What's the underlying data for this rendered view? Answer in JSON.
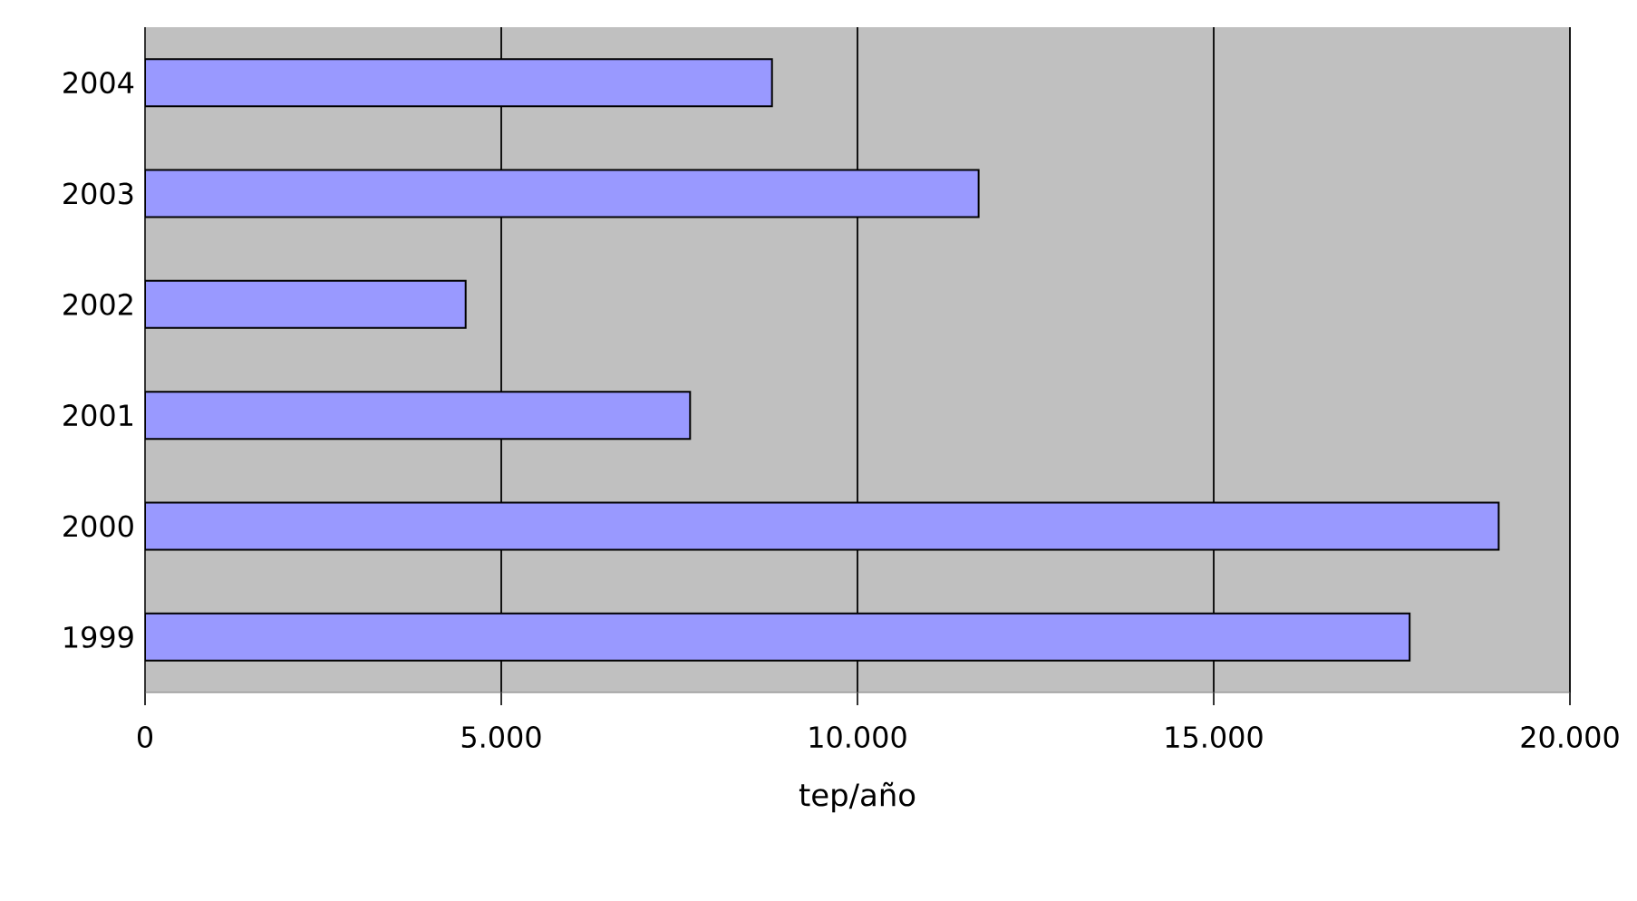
{
  "chart_data": {
    "type": "bar",
    "orientation": "horizontal",
    "categories": [
      "2004",
      "2003",
      "2002",
      "2001",
      "2000",
      "1999"
    ],
    "values": [
      8800,
      11700,
      4500,
      7650,
      19000,
      17750
    ],
    "color": "#9999ff",
    "xlim": [
      0,
      20000
    ],
    "xticks": [
      {
        "value": 0,
        "label": "0"
      },
      {
        "value": 5000,
        "label": "5.000"
      },
      {
        "value": 10000,
        "label": "10.000"
      },
      {
        "value": 15000,
        "label": "15.000"
      },
      {
        "value": 20000,
        "label": "20.000"
      }
    ],
    "xlabel": "tep/año",
    "grid": "x"
  }
}
